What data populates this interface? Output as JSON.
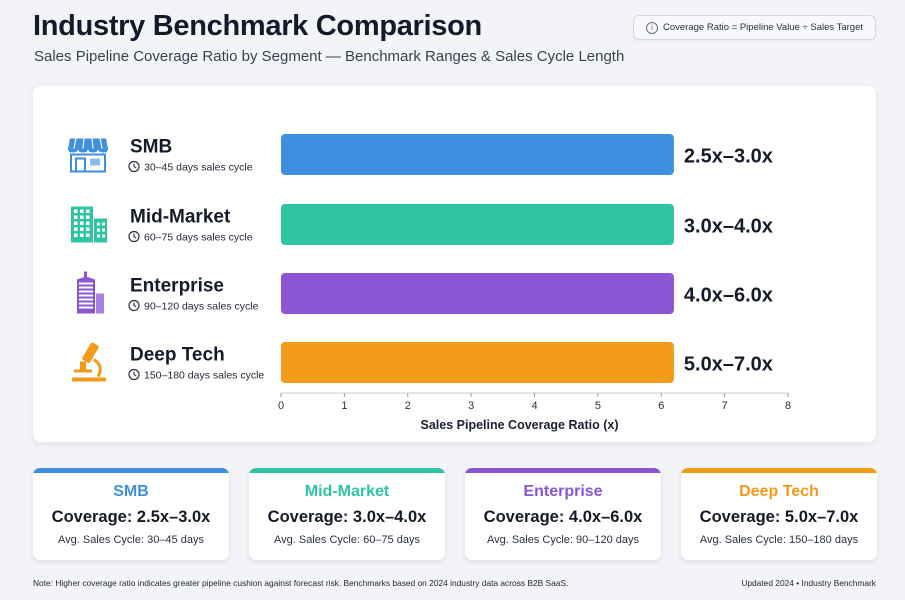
{
  "header": {
    "title": "Industry Benchmark Comparison",
    "subtitle": "Sales Pipeline Coverage Ratio by Segment — Benchmark Ranges & Sales Cycle Length",
    "formula": "Coverage Ratio = Pipeline Value ÷ Sales Target"
  },
  "chart_data": {
    "type": "bar",
    "orientation": "horizontal",
    "title": "Industry Benchmark Comparison",
    "subtitle": "Sales Pipeline Coverage Ratio by Segment — Benchmark Ranges & Sales Cycle Length",
    "xlabel": "Sales Pipeline Coverage Ratio (x)",
    "xlim": [
      0,
      8
    ],
    "xticks": [
      "0",
      "1",
      "2",
      "3",
      "4",
      "5",
      "6",
      "7",
      "8"
    ],
    "grid": false,
    "categories": [
      "SMB",
      "Mid-Market",
      "Enterprise",
      "Deep Tech"
    ],
    "values": [
      6.2,
      6.2,
      6.2,
      6.2
    ],
    "range_labels": [
      "2.5x–3.0x",
      "3.0x–4.0x",
      "4.0x–6.0x",
      "5.0x–7.0x"
    ],
    "sales_cycles": [
      "30–45 days sales cycle",
      "60–75 days sales cycle",
      "90–120 days sales cycle",
      "150–180 days sales cycle"
    ],
    "icons": [
      "storefront-icon",
      "office-buildings-icon",
      "skyscraper-icon",
      "microscope-icon"
    ],
    "colors": [
      "#3f8fe0",
      "#2fc4a2",
      "#8b55d6",
      "#f39a19"
    ]
  },
  "cards": [
    {
      "name": "SMB",
      "coverage": "Coverage: 2.5x–3.0x",
      "cycle": "Avg. Sales Cycle: 30–45 days",
      "color": "#3f8fe0"
    },
    {
      "name": "Mid-Market",
      "coverage": "Coverage: 3.0x–4.0x",
      "cycle": "Avg. Sales Cycle: 60–75 days",
      "color": "#2fc4a2"
    },
    {
      "name": "Enterprise",
      "coverage": "Coverage: 4.0x–6.0x",
      "cycle": "Avg. Sales Cycle: 90–120 days",
      "color": "#8b55d6"
    },
    {
      "name": "Deep Tech",
      "coverage": "Coverage: 5.0x–7.0x",
      "cycle": "Avg. Sales Cycle: 150–180 days",
      "color": "#f39a19"
    }
  ],
  "footer": {
    "note": "Note: Higher coverage ratio indicates greater pipeline cushion against forecast risk. Benchmarks based on 2024 industry data across B2B SaaS.",
    "updated": "Updated 2024 • Industry Benchmark"
  }
}
